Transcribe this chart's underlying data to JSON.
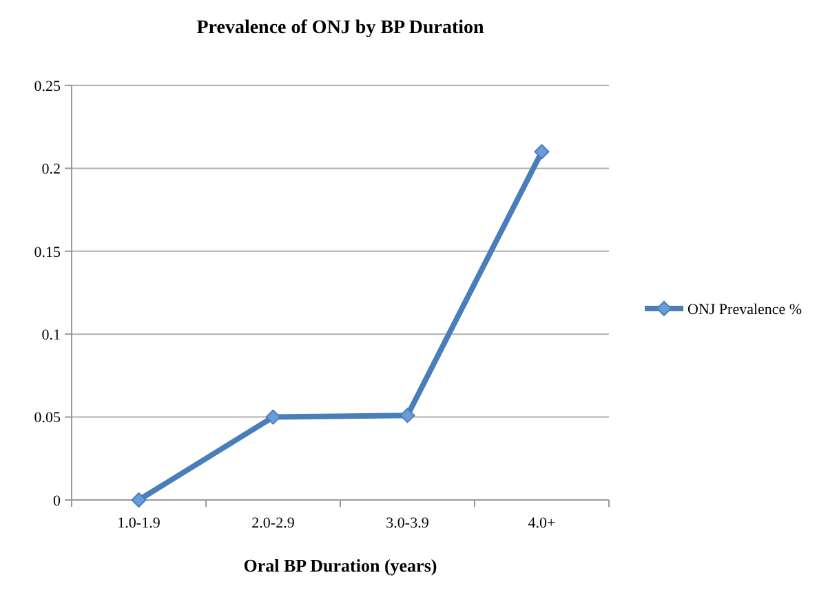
{
  "chart_data": {
    "type": "line",
    "title": "Prevalence of ONJ by BP Duration",
    "xlabel": "Oral BP Duration (years)",
    "categories": [
      "1.0-1.9",
      "2.0-2.9",
      "3.0-3.9",
      "4.0+"
    ],
    "series": [
      {
        "name": "ONJ Prevalence %",
        "color": "#4a7ebb",
        "values": [
          0,
          0.05,
          0.051,
          0.21
        ]
      }
    ],
    "ylim": [
      0,
      0.25
    ],
    "yticks": [
      0,
      0.05,
      0.1,
      0.15,
      0.2,
      0.25
    ],
    "grid": "y",
    "legend": "right",
    "marker": "diamond",
    "line_style": "solid"
  }
}
